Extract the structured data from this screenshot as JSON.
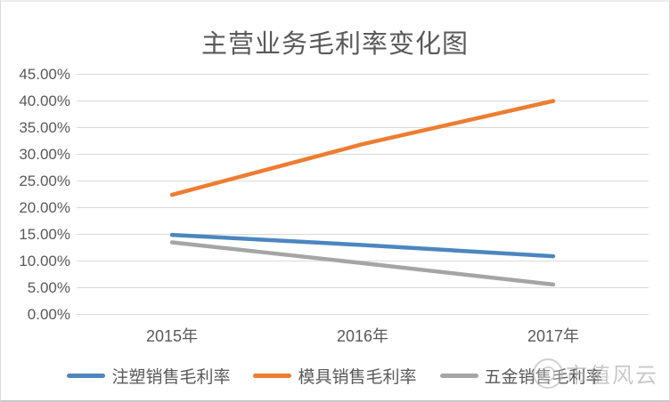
{
  "title": "主营业务毛利率变化图",
  "watermark": {
    "text": "市值风云"
  },
  "chart_data": {
    "type": "line",
    "title": "主营业务毛利率变化图",
    "categories": [
      "2015年",
      "2016年",
      "2017年"
    ],
    "series": [
      {
        "name": "注塑销售毛利率",
        "color": "#4C86C0",
        "values": [
          14.9,
          13.0,
          10.9
        ]
      },
      {
        "name": "模具销售毛利率",
        "color": "#ED7D31",
        "values": [
          22.4,
          31.9,
          40.0
        ]
      },
      {
        "name": "五金销售毛利率",
        "color": "#A5A5A5",
        "values": [
          13.5,
          9.6,
          5.6
        ]
      }
    ],
    "y_ticks": [
      "45.00%",
      "40.00%",
      "35.00%",
      "30.00%",
      "25.00%",
      "20.00%",
      "15.00%",
      "10.00%",
      "5.00%",
      "0.00%"
    ],
    "ylim": [
      0,
      45
    ],
    "xlabel": "",
    "ylabel": "",
    "grid": true,
    "legend_position": "bottom",
    "gridline_color": "#d9d9d9",
    "text_color": "#595959"
  }
}
